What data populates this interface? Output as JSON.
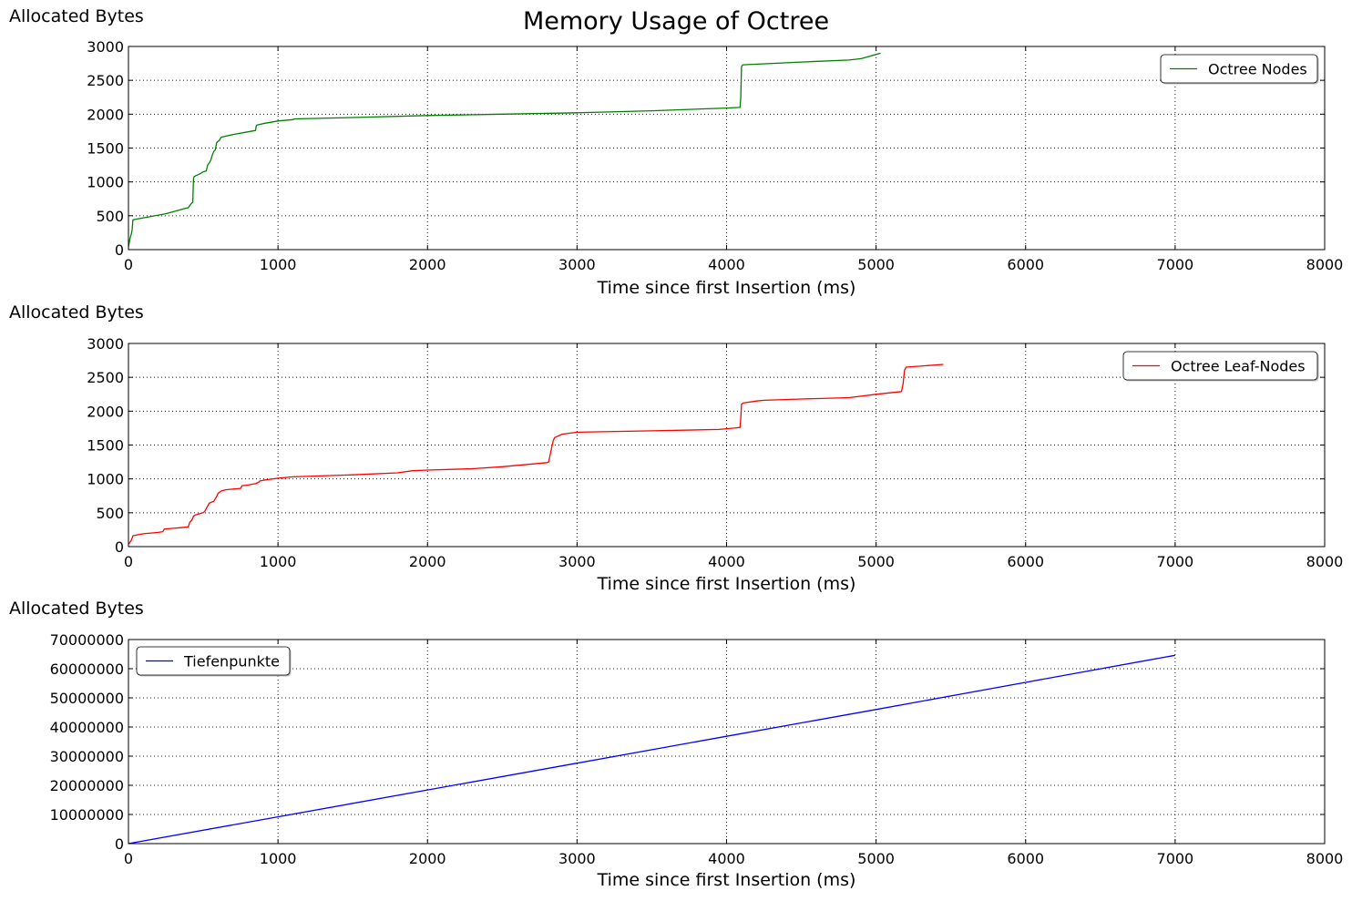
{
  "figure": {
    "title": "Memory Usage of Octree"
  },
  "chart_data": [
    {
      "type": "line",
      "title": "Memory Usage of Octree",
      "xlabel": "Time since first Insertion (ms)",
      "ylabel": "Allocated Bytes",
      "xlim": [
        0,
        8000
      ],
      "ylim": [
        0,
        3000
      ],
      "xticks": [
        "0",
        "1000",
        "2000",
        "3000",
        "4000",
        "5000",
        "6000",
        "7000",
        "8000"
      ],
      "yticks": [
        "0",
        "500",
        "1000",
        "1500",
        "2000",
        "2500",
        "3000"
      ],
      "grid": true,
      "legend_position": "top-right",
      "series": [
        {
          "name": "Octree Nodes",
          "color": "#008000",
          "x": [
            0,
            10,
            20,
            25,
            30,
            50,
            100,
            150,
            200,
            250,
            300,
            350,
            400,
            420,
            430,
            435,
            440,
            460,
            480,
            500,
            520,
            530,
            540,
            550,
            560,
            570,
            580,
            585,
            590,
            610,
            620,
            700,
            800,
            850,
            855,
            860,
            900,
            1000,
            1100,
            1110,
            1500,
            2000,
            2500,
            3000,
            3500,
            4000,
            4090,
            4095,
            4100,
            4105,
            4110,
            4500,
            4820,
            4900,
            5030
          ],
          "y": [
            40,
            160,
            240,
            300,
            440,
            450,
            470,
            490,
            510,
            530,
            560,
            590,
            620,
            680,
            700,
            1050,
            1080,
            1100,
            1120,
            1150,
            1160,
            1250,
            1280,
            1320,
            1390,
            1450,
            1470,
            1520,
            1580,
            1620,
            1660,
            1700,
            1740,
            1760,
            1830,
            1840,
            1860,
            1900,
            1920,
            1930,
            1950,
            1980,
            2000,
            2020,
            2050,
            2090,
            2100,
            2250,
            2700,
            2720,
            2730,
            2770,
            2800,
            2820,
            2900
          ]
        }
      ]
    },
    {
      "type": "line",
      "xlabel": "Time since first Insertion (ms)",
      "ylabel": "Allocated Bytes",
      "xlim": [
        0,
        8000
      ],
      "ylim": [
        0,
        3000
      ],
      "xticks": [
        "0",
        "1000",
        "2000",
        "3000",
        "4000",
        "5000",
        "6000",
        "7000",
        "8000"
      ],
      "yticks": [
        "0",
        "500",
        "1000",
        "1500",
        "2000",
        "2500",
        "3000"
      ],
      "grid": true,
      "legend_position": "top-right",
      "series": [
        {
          "name": "Octree Leaf-Nodes",
          "color": "#ff0000",
          "x": [
            0,
            10,
            20,
            25,
            30,
            50,
            100,
            200,
            230,
            240,
            300,
            350,
            400,
            405,
            410,
            420,
            430,
            435,
            450,
            500,
            510,
            530,
            540,
            570,
            590,
            600,
            620,
            650,
            700,
            750,
            760,
            800,
            850,
            870,
            880,
            900,
            1000,
            1100,
            1500,
            1800,
            1900,
            2000,
            2300,
            2500,
            2600,
            2800,
            2810,
            2830,
            2840,
            2850,
            2900,
            3000,
            3500,
            3950,
            4050,
            4090,
            4095,
            4100,
            4110,
            4200,
            4250,
            4500,
            4820,
            5000,
            5170,
            5180,
            5190,
            5200,
            5450
          ],
          "y": [
            40,
            60,
            100,
            130,
            160,
            170,
            190,
            210,
            220,
            260,
            270,
            280,
            290,
            330,
            360,
            380,
            420,
            450,
            470,
            500,
            520,
            600,
            640,
            670,
            740,
            790,
            820,
            840,
            850,
            860,
            900,
            910,
            930,
            950,
            970,
            980,
            1010,
            1030,
            1060,
            1090,
            1120,
            1130,
            1150,
            1180,
            1200,
            1240,
            1250,
            1460,
            1560,
            1610,
            1660,
            1690,
            1710,
            1730,
            1750,
            1760,
            1900,
            2100,
            2120,
            2150,
            2160,
            2180,
            2200,
            2250,
            2290,
            2400,
            2600,
            2650,
            2690
          ]
        }
      ]
    },
    {
      "type": "line",
      "xlabel": "Time since first Insertion (ms)",
      "ylabel": "Allocated Bytes",
      "xlim": [
        0,
        8000
      ],
      "ylim": [
        0,
        70000000
      ],
      "xticks": [
        "0",
        "1000",
        "2000",
        "3000",
        "4000",
        "5000",
        "6000",
        "7000",
        "8000"
      ],
      "yticks": [
        "0",
        "10000000",
        "20000000",
        "30000000",
        "40000000",
        "50000000",
        "60000000",
        "70000000"
      ],
      "grid": true,
      "legend_position": "top-left",
      "series": [
        {
          "name": "Tiefenpunkte",
          "color": "#0000ff",
          "x": [
            0,
            1000,
            2000,
            3000,
            4000,
            5000,
            6000,
            7000
          ],
          "y": [
            0,
            9200000,
            18400000,
            27600000,
            36800000,
            46000000,
            55300000,
            64600000
          ]
        }
      ]
    }
  ]
}
